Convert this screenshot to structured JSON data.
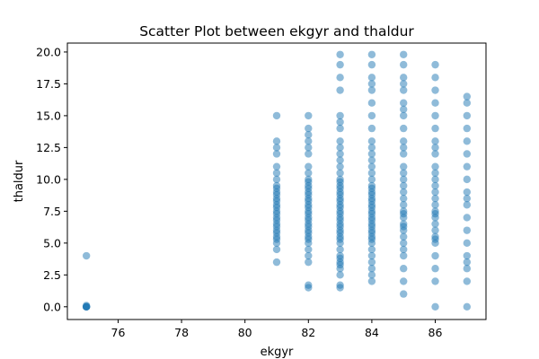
{
  "chart_data": {
    "type": "scatter",
    "title": "Scatter Plot between ekgyr and thaldur",
    "xlabel": "ekgyr",
    "ylabel": "thaldur",
    "xlim": [
      74.4,
      87.6
    ],
    "ylim": [
      -1.0,
      20.7
    ],
    "xticks": [
      76,
      78,
      80,
      82,
      84,
      86
    ],
    "yticks": [
      0.0,
      2.5,
      5.0,
      7.5,
      10.0,
      12.5,
      15.0,
      17.5,
      20.0
    ],
    "ytick_labels": [
      "0.0",
      "2.5",
      "5.0",
      "7.5",
      "10.0",
      "12.5",
      "15.0",
      "17.5",
      "20.0"
    ],
    "grid": false,
    "marker_color": "#1f77b4",
    "marker_alpha": 0.5,
    "series": [
      {
        "x": 75,
        "y": [
          0,
          0,
          0,
          0,
          0,
          0.1,
          4.0
        ]
      },
      {
        "x": 81,
        "y": [
          3.5,
          4.5,
          5.0,
          5.3,
          5.5,
          5.8,
          6.0,
          6.3,
          6.5,
          6.8,
          7.0,
          7.3,
          7.5,
          7.8,
          8.0,
          8.3,
          8.5,
          8.8,
          9.0,
          9.3,
          9.5,
          10.0,
          10.5,
          11.0,
          12.0,
          12.5,
          13.0,
          15.0
        ]
      },
      {
        "x": 82,
        "y": [
          1.5,
          1.7,
          3.5,
          4.0,
          4.5,
          5.0,
          5.3,
          5.5,
          5.8,
          6.0,
          6.3,
          6.5,
          6.8,
          7.0,
          7.3,
          7.5,
          7.8,
          8.0,
          8.3,
          8.5,
          8.8,
          9.0,
          9.3,
          9.5,
          9.8,
          10.0,
          10.5,
          11.0,
          12.0,
          12.5,
          13.0,
          13.5,
          14.0,
          15.0
        ]
      },
      {
        "x": 83,
        "y": [
          1.5,
          1.7,
          2.5,
          3.0,
          3.3,
          3.5,
          3.8,
          4.0,
          4.5,
          5.0,
          5.3,
          5.5,
          5.8,
          6.0,
          6.3,
          6.5,
          6.8,
          7.0,
          7.3,
          7.5,
          7.8,
          8.0,
          8.3,
          8.5,
          8.8,
          9.0,
          9.3,
          9.5,
          9.8,
          10.0,
          10.5,
          11.0,
          11.5,
          12.0,
          12.5,
          13.0,
          14.0,
          14.5,
          15.0,
          17.0,
          18.0,
          19.0,
          19.8
        ]
      },
      {
        "x": 84,
        "y": [
          2.0,
          2.5,
          3.0,
          3.5,
          4.0,
          4.5,
          5.0,
          5.3,
          5.5,
          5.8,
          6.0,
          6.3,
          6.5,
          6.8,
          7.0,
          7.3,
          7.5,
          7.8,
          8.0,
          8.3,
          8.5,
          8.8,
          9.0,
          9.3,
          9.5,
          10.0,
          10.5,
          11.0,
          11.5,
          12.0,
          12.5,
          13.0,
          14.0,
          15.0,
          16.0,
          17.0,
          17.5,
          18.0,
          19.0,
          19.8
        ]
      },
      {
        "x": 85,
        "y": [
          1.0,
          2.0,
          3.0,
          4.0,
          4.5,
          5.0,
          5.5,
          6.0,
          6.3,
          6.5,
          7.0,
          7.3,
          7.5,
          8.0,
          8.5,
          9.0,
          9.5,
          10.0,
          10.5,
          11.0,
          12.0,
          12.5,
          13.0,
          14.0,
          15.0,
          15.5,
          16.0,
          17.0,
          17.5,
          18.0,
          19.0,
          19.8
        ]
      },
      {
        "x": 86,
        "y": [
          0.0,
          2.0,
          3.0,
          4.0,
          5.0,
          5.3,
          5.5,
          6.0,
          6.5,
          7.0,
          7.3,
          7.5,
          8.0,
          8.5,
          9.0,
          9.5,
          10.0,
          10.5,
          11.0,
          12.0,
          12.5,
          13.0,
          14.0,
          15.0,
          16.0,
          17.0,
          18.0,
          19.0
        ]
      },
      {
        "x": 87,
        "y": [
          0.0,
          2.0,
          3.0,
          3.5,
          4.0,
          5.0,
          6.0,
          7.0,
          8.0,
          8.5,
          9.0,
          10.0,
          11.0,
          12.0,
          13.0,
          14.0,
          15.0,
          16.0,
          16.5
        ]
      }
    ]
  }
}
